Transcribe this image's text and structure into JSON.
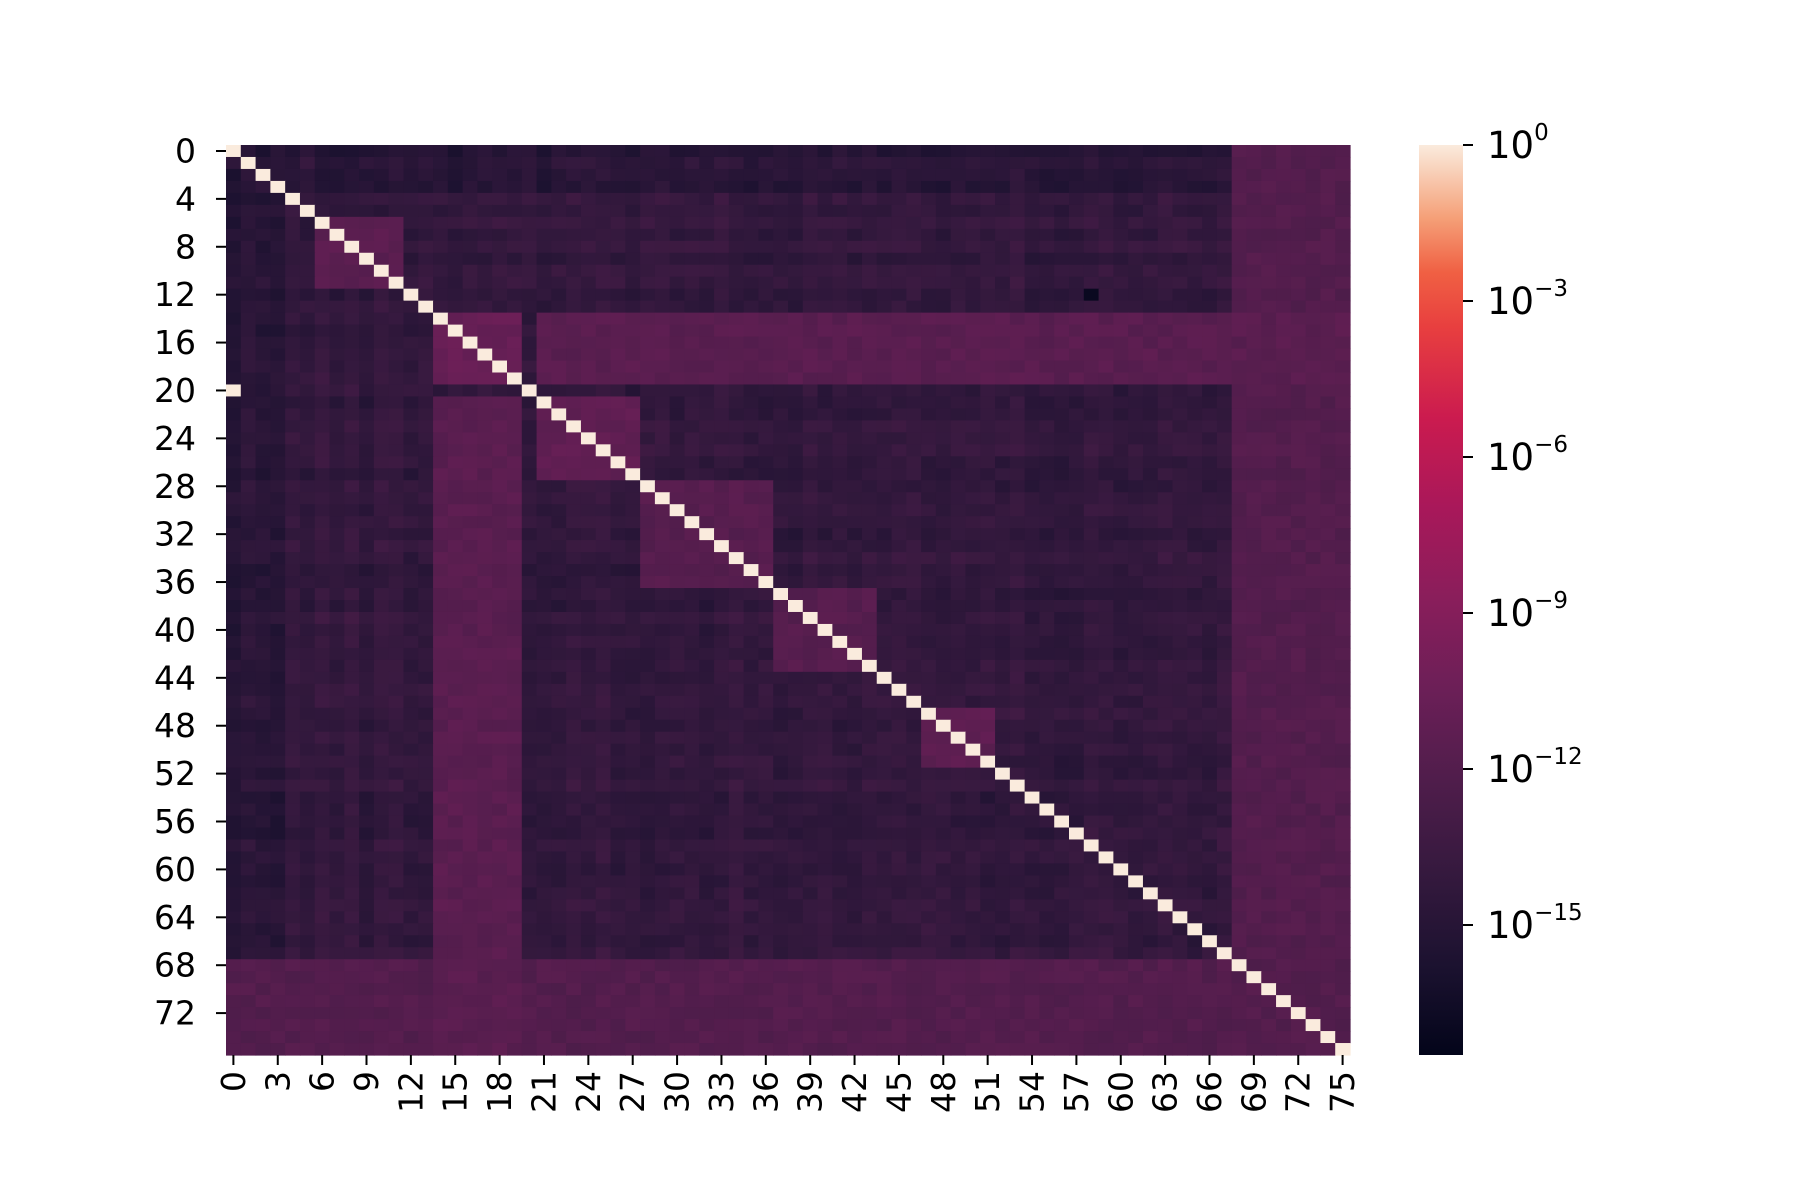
{
  "chart_data": {
    "type": "heatmap",
    "title": "",
    "xlabel": "",
    "ylabel": "",
    "n_rows": 76,
    "n_cols": 76,
    "x_tick_labels": [
      "0",
      "3",
      "6",
      "9",
      "12",
      "15",
      "18",
      "21",
      "24",
      "27",
      "30",
      "33",
      "36",
      "39",
      "42",
      "45",
      "48",
      "51",
      "54",
      "57",
      "60",
      "63",
      "66",
      "69",
      "72",
      "75"
    ],
    "y_tick_labels": [
      "0",
      "4",
      "8",
      "12",
      "16",
      "20",
      "24",
      "28",
      "32",
      "36",
      "40",
      "44",
      "48",
      "52",
      "56",
      "60",
      "64",
      "68",
      "72"
    ],
    "colorbar": {
      "scale": "log",
      "colormap": "rocket",
      "range_log10": [
        -17.5,
        0
      ],
      "ticks": [
        {
          "value_log10": 0,
          "base": "10",
          "exp": "0"
        },
        {
          "value_log10": -3,
          "base": "10",
          "exp": "−3"
        },
        {
          "value_log10": -6,
          "base": "10",
          "exp": "−6"
        },
        {
          "value_log10": -9,
          "base": "10",
          "exp": "−9"
        },
        {
          "value_log10": -12,
          "base": "10",
          "exp": "−12"
        },
        {
          "value_log10": -15,
          "base": "10",
          "exp": "−15"
        }
      ]
    },
    "diagonal_value_log10": 0,
    "typical_offdiagonal_log10": [
      -15.5,
      -11
    ],
    "notable_blocks": [
      {
        "rows": [
          6,
          11
        ],
        "cols": [
          6,
          11
        ],
        "value_log10": -11.5
      },
      {
        "rows": [
          14,
          19
        ],
        "cols": [
          14,
          19
        ],
        "value_log10": -10.8
      },
      {
        "rows": [
          14,
          19
        ],
        "cols": [
          21,
          75
        ],
        "value_log10": -11.6
      },
      {
        "rows": [
          21,
          27
        ],
        "cols": [
          21,
          27
        ],
        "value_log10": -11.2
      },
      {
        "rows": [
          28,
          36
        ],
        "cols": [
          28,
          36
        ],
        "value_log10": -11.8
      },
      {
        "rows": [
          37,
          43
        ],
        "cols": [
          37,
          43
        ],
        "value_log10": -11.8
      },
      {
        "rows": [
          47,
          51
        ],
        "cols": [
          47,
          51
        ],
        "value_log10": -11.4
      },
      {
        "rows": [
          68,
          75
        ],
        "cols": [
          0,
          75
        ],
        "value_log10": -12.0
      }
    ],
    "notable_cells": [
      {
        "row": 20,
        "col": 0,
        "value_log10": 0
      },
      {
        "row": 12,
        "col": 58,
        "value_log10": -17
      }
    ]
  }
}
